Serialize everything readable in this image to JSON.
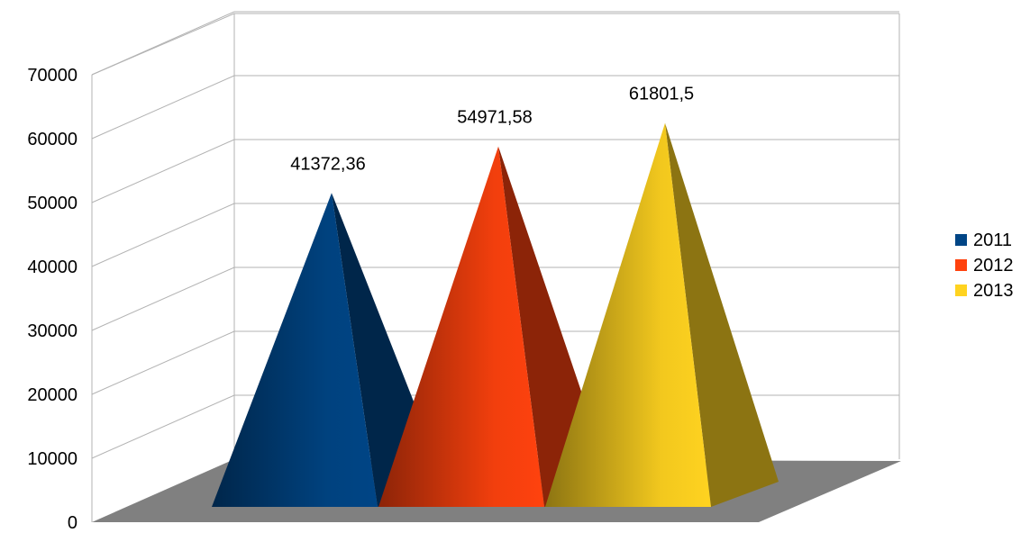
{
  "chart_data": {
    "type": "bar",
    "style": "3d-pyramid",
    "categories": [
      ""
    ],
    "series": [
      {
        "name": "2011",
        "values": [
          41372.36
        ],
        "label": "41372,36",
        "color": "#004586"
      },
      {
        "name": "2012",
        "values": [
          54971.58
        ],
        "label": "54971,58",
        "color": "#ff420e"
      },
      {
        "name": "2013",
        "values": [
          61801.5
        ],
        "label": "61801,5",
        "color": "#ffd320"
      }
    ],
    "ylim": [
      0,
      70000
    ],
    "yticks": [
      "0",
      "10000",
      "20000",
      "30000",
      "40000",
      "50000",
      "60000",
      "70000"
    ],
    "grid": true,
    "legend": "right",
    "floor_color": "#808080"
  }
}
